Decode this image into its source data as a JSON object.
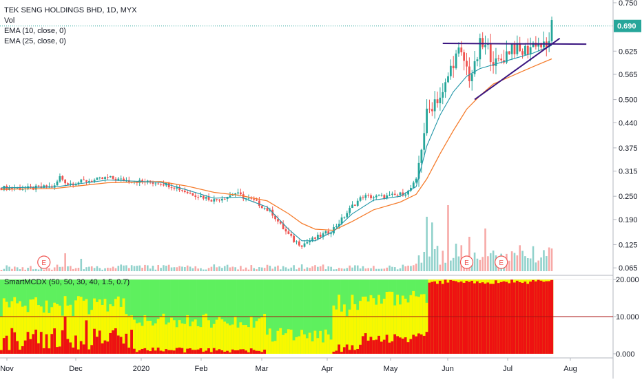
{
  "chart_data": {
    "type": "candlestick",
    "title": "TEK SENG HOLDINGS BHD, 1D, MYX",
    "legend": [
      "Vol",
      "EMA (10, close, 0)",
      "EMA (25, close, 0)"
    ],
    "last_price_label": "0.690",
    "price_ticks": [
      "0.750",
      "0.690",
      "0.625",
      "0.565",
      "0.500",
      "0.440",
      "0.375",
      "0.315",
      "0.250",
      "0.190",
      "0.125",
      "0.065"
    ],
    "price_range": [
      0.06,
      0.75
    ],
    "time_labels": [
      "Nov",
      "Dec",
      "2020",
      "Feb",
      "Mar",
      "Apr",
      "May",
      "Jun",
      "Jul",
      "Aug"
    ],
    "earnings_markers": [
      "E",
      "E",
      "E"
    ],
    "price_path": [
      [
        0,
        0.272
      ],
      [
        10,
        0.27
      ],
      [
        20,
        0.275
      ],
      [
        22,
        0.3
      ],
      [
        25,
        0.282
      ],
      [
        28,
        0.285
      ],
      [
        32,
        0.29
      ],
      [
        36,
        0.292
      ],
      [
        40,
        0.298
      ],
      [
        45,
        0.292
      ],
      [
        50,
        0.29
      ],
      [
        55,
        0.286
      ],
      [
        60,
        0.285
      ],
      [
        65,
        0.275
      ],
      [
        70,
        0.26
      ],
      [
        75,
        0.25
      ],
      [
        80,
        0.24
      ],
      [
        85,
        0.25
      ],
      [
        88,
        0.258
      ],
      [
        92,
        0.245
      ],
      [
        95,
        0.238
      ],
      [
        98,
        0.225
      ],
      [
        102,
        0.205
      ],
      [
        105,
        0.175
      ],
      [
        108,
        0.15
      ],
      [
        110,
        0.135
      ],
      [
        113,
        0.125
      ],
      [
        116,
        0.135
      ],
      [
        120,
        0.148
      ],
      [
        124,
        0.16
      ],
      [
        128,
        0.19
      ],
      [
        132,
        0.225
      ],
      [
        136,
        0.25
      ],
      [
        140,
        0.248
      ],
      [
        146,
        0.25
      ],
      [
        150,
        0.255
      ],
      [
        153,
        0.262
      ],
      [
        156,
        0.29
      ],
      [
        158,
        0.38
      ],
      [
        160,
        0.46
      ],
      [
        163,
        0.5
      ],
      [
        166,
        0.51
      ],
      [
        168,
        0.56
      ],
      [
        170,
        0.6
      ],
      [
        172,
        0.62
      ],
      [
        174,
        0.6
      ],
      [
        176,
        0.56
      ],
      [
        178,
        0.58
      ],
      [
        180,
        0.64
      ],
      [
        183,
        0.63
      ],
      [
        186,
        0.59
      ],
      [
        189,
        0.61
      ],
      [
        192,
        0.64
      ],
      [
        195,
        0.62
      ],
      [
        198,
        0.63
      ],
      [
        201,
        0.65
      ],
      [
        203,
        0.64
      ],
      [
        205,
        0.63
      ],
      [
        207,
        0.69
      ]
    ],
    "ema10": [
      [
        0,
        0.272
      ],
      [
        20,
        0.274
      ],
      [
        40,
        0.292
      ],
      [
        60,
        0.286
      ],
      [
        70,
        0.266
      ],
      [
        80,
        0.245
      ],
      [
        90,
        0.248
      ],
      [
        100,
        0.222
      ],
      [
        108,
        0.165
      ],
      [
        113,
        0.135
      ],
      [
        118,
        0.135
      ],
      [
        125,
        0.16
      ],
      [
        132,
        0.205
      ],
      [
        140,
        0.24
      ],
      [
        150,
        0.25
      ],
      [
        156,
        0.275
      ],
      [
        160,
        0.38
      ],
      [
        165,
        0.46
      ],
      [
        170,
        0.52
      ],
      [
        175,
        0.56
      ],
      [
        180,
        0.58
      ],
      [
        185,
        0.59
      ],
      [
        190,
        0.6
      ],
      [
        195,
        0.61
      ],
      [
        200,
        0.62
      ],
      [
        207,
        0.64
      ]
    ],
    "ema25": [
      [
        0,
        0.268
      ],
      [
        20,
        0.27
      ],
      [
        40,
        0.285
      ],
      [
        60,
        0.288
      ],
      [
        70,
        0.276
      ],
      [
        80,
        0.26
      ],
      [
        90,
        0.252
      ],
      [
        100,
        0.238
      ],
      [
        108,
        0.205
      ],
      [
        113,
        0.18
      ],
      [
        118,
        0.165
      ],
      [
        125,
        0.162
      ],
      [
        132,
        0.185
      ],
      [
        140,
        0.215
      ],
      [
        150,
        0.235
      ],
      [
        156,
        0.255
      ],
      [
        160,
        0.295
      ],
      [
        165,
        0.36
      ],
      [
        170,
        0.42
      ],
      [
        175,
        0.475
      ],
      [
        180,
        0.51
      ],
      [
        185,
        0.54
      ],
      [
        190,
        0.555
      ],
      [
        195,
        0.57
      ],
      [
        200,
        0.585
      ],
      [
        207,
        0.605
      ]
    ],
    "trendlines": [
      {
        "from": [
          166,
          0.645
        ],
        "to": [
          220,
          0.643
        ]
      },
      {
        "from": [
          178,
          0.5
        ],
        "to": [
          210,
          0.658
        ]
      }
    ],
    "indicator": {
      "title": "SmartMCDX (50, 50, 30, 40, 1.5, 0.7)",
      "ticks": [
        "20.000",
        "10.000",
        "0.000"
      ],
      "range": [
        0,
        20
      ],
      "reference_line": 10,
      "band_colors": {
        "green": "#5ef05e",
        "yellow": "#f8f800",
        "red": "#ee1111"
      }
    }
  }
}
